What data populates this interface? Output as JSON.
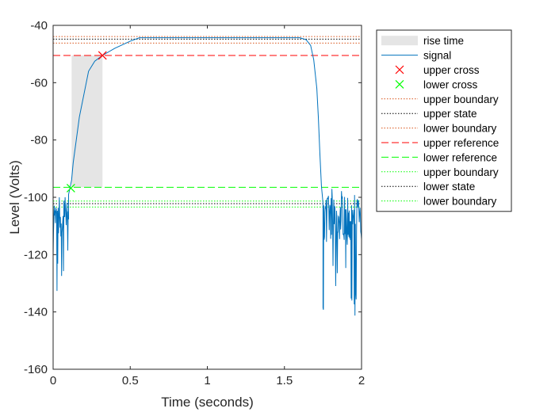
{
  "chart_data": {
    "type": "line",
    "title": "",
    "xlabel": "Time (seconds)",
    "ylabel": "Level (Volts)",
    "xlim": [
      0,
      2
    ],
    "ylim": [
      -160,
      -40
    ],
    "xticks": [
      "0",
      "0.5",
      "1",
      "1.5",
      "2"
    ],
    "yticks": [
      "-40",
      "-60",
      "-80",
      "-100",
      "-120",
      "-140",
      "-160"
    ],
    "grid": false,
    "legend_position": "outside-right",
    "rise_time_region": {
      "x": [
        0.12,
        0.32
      ],
      "y": [
        -96.5,
        -50.5
      ]
    },
    "crossings": {
      "upper_cross": {
        "x": 0.32,
        "y": -50.5
      },
      "lower_cross": {
        "x": 0.115,
        "y": -96.8
      }
    },
    "levels": {
      "upper_boundary_1": -43.9,
      "upper_state": -44.8,
      "lower_boundary_1": -46.2,
      "upper_reference": -50.5,
      "lower_reference": -96.5,
      "upper_boundary_2": -101.3,
      "lower_state": -102.2,
      "lower_boundary_2": -103.4
    },
    "signal": {
      "name": "signal",
      "rise": [
        [
          0.1,
          -99
        ],
        [
          0.12,
          -94
        ],
        [
          0.13,
          -88
        ],
        [
          0.15,
          -80
        ],
        [
          0.17,
          -72
        ],
        [
          0.2,
          -64
        ],
        [
          0.23,
          -56
        ],
        [
          0.27,
          -52.5
        ],
        [
          0.32,
          -50.5
        ],
        [
          0.4,
          -48
        ],
        [
          0.5,
          -45.5
        ],
        [
          0.56,
          -44.3
        ],
        [
          1.0,
          -44.3
        ],
        [
          1.6,
          -44.3
        ]
      ],
      "fall": [
        [
          1.6,
          -44.3
        ],
        [
          1.64,
          -45
        ],
        [
          1.67,
          -47
        ],
        [
          1.69,
          -52
        ],
        [
          1.71,
          -62
        ],
        [
          1.72,
          -72
        ],
        [
          1.73,
          -85
        ],
        [
          1.74,
          -96
        ],
        [
          1.75,
          -102
        ]
      ],
      "low_segments": [
        [
          0,
          0.1
        ],
        [
          1.75,
          2
        ]
      ],
      "low_level": -107,
      "noise_range": [
        -142,
        -97
      ]
    },
    "legend": [
      {
        "label": "rise time",
        "style": "patch",
        "color": "#e5e5e5"
      },
      {
        "label": "signal",
        "style": "line",
        "color": "#0072bd"
      },
      {
        "label": "upper cross",
        "style": "x-marker",
        "color": "#ff0000"
      },
      {
        "label": "lower cross",
        "style": "x-marker",
        "color": "#00ff00"
      },
      {
        "label": "upper boundary",
        "style": "dotted",
        "color": "#d95319"
      },
      {
        "label": "upper state",
        "style": "dotted",
        "color": "#000000"
      },
      {
        "label": "lower boundary",
        "style": "dotted",
        "color": "#d95319"
      },
      {
        "label": "upper reference",
        "style": "dashed",
        "color": "#ff0000"
      },
      {
        "label": "lower reference",
        "style": "dashed",
        "color": "#00ff00"
      },
      {
        "label": "upper boundary",
        "style": "dotted",
        "color": "#00ff00"
      },
      {
        "label": "lower state",
        "style": "dotted",
        "color": "#000000"
      },
      {
        "label": "lower boundary",
        "style": "dotted",
        "color": "#00ff00"
      }
    ]
  }
}
